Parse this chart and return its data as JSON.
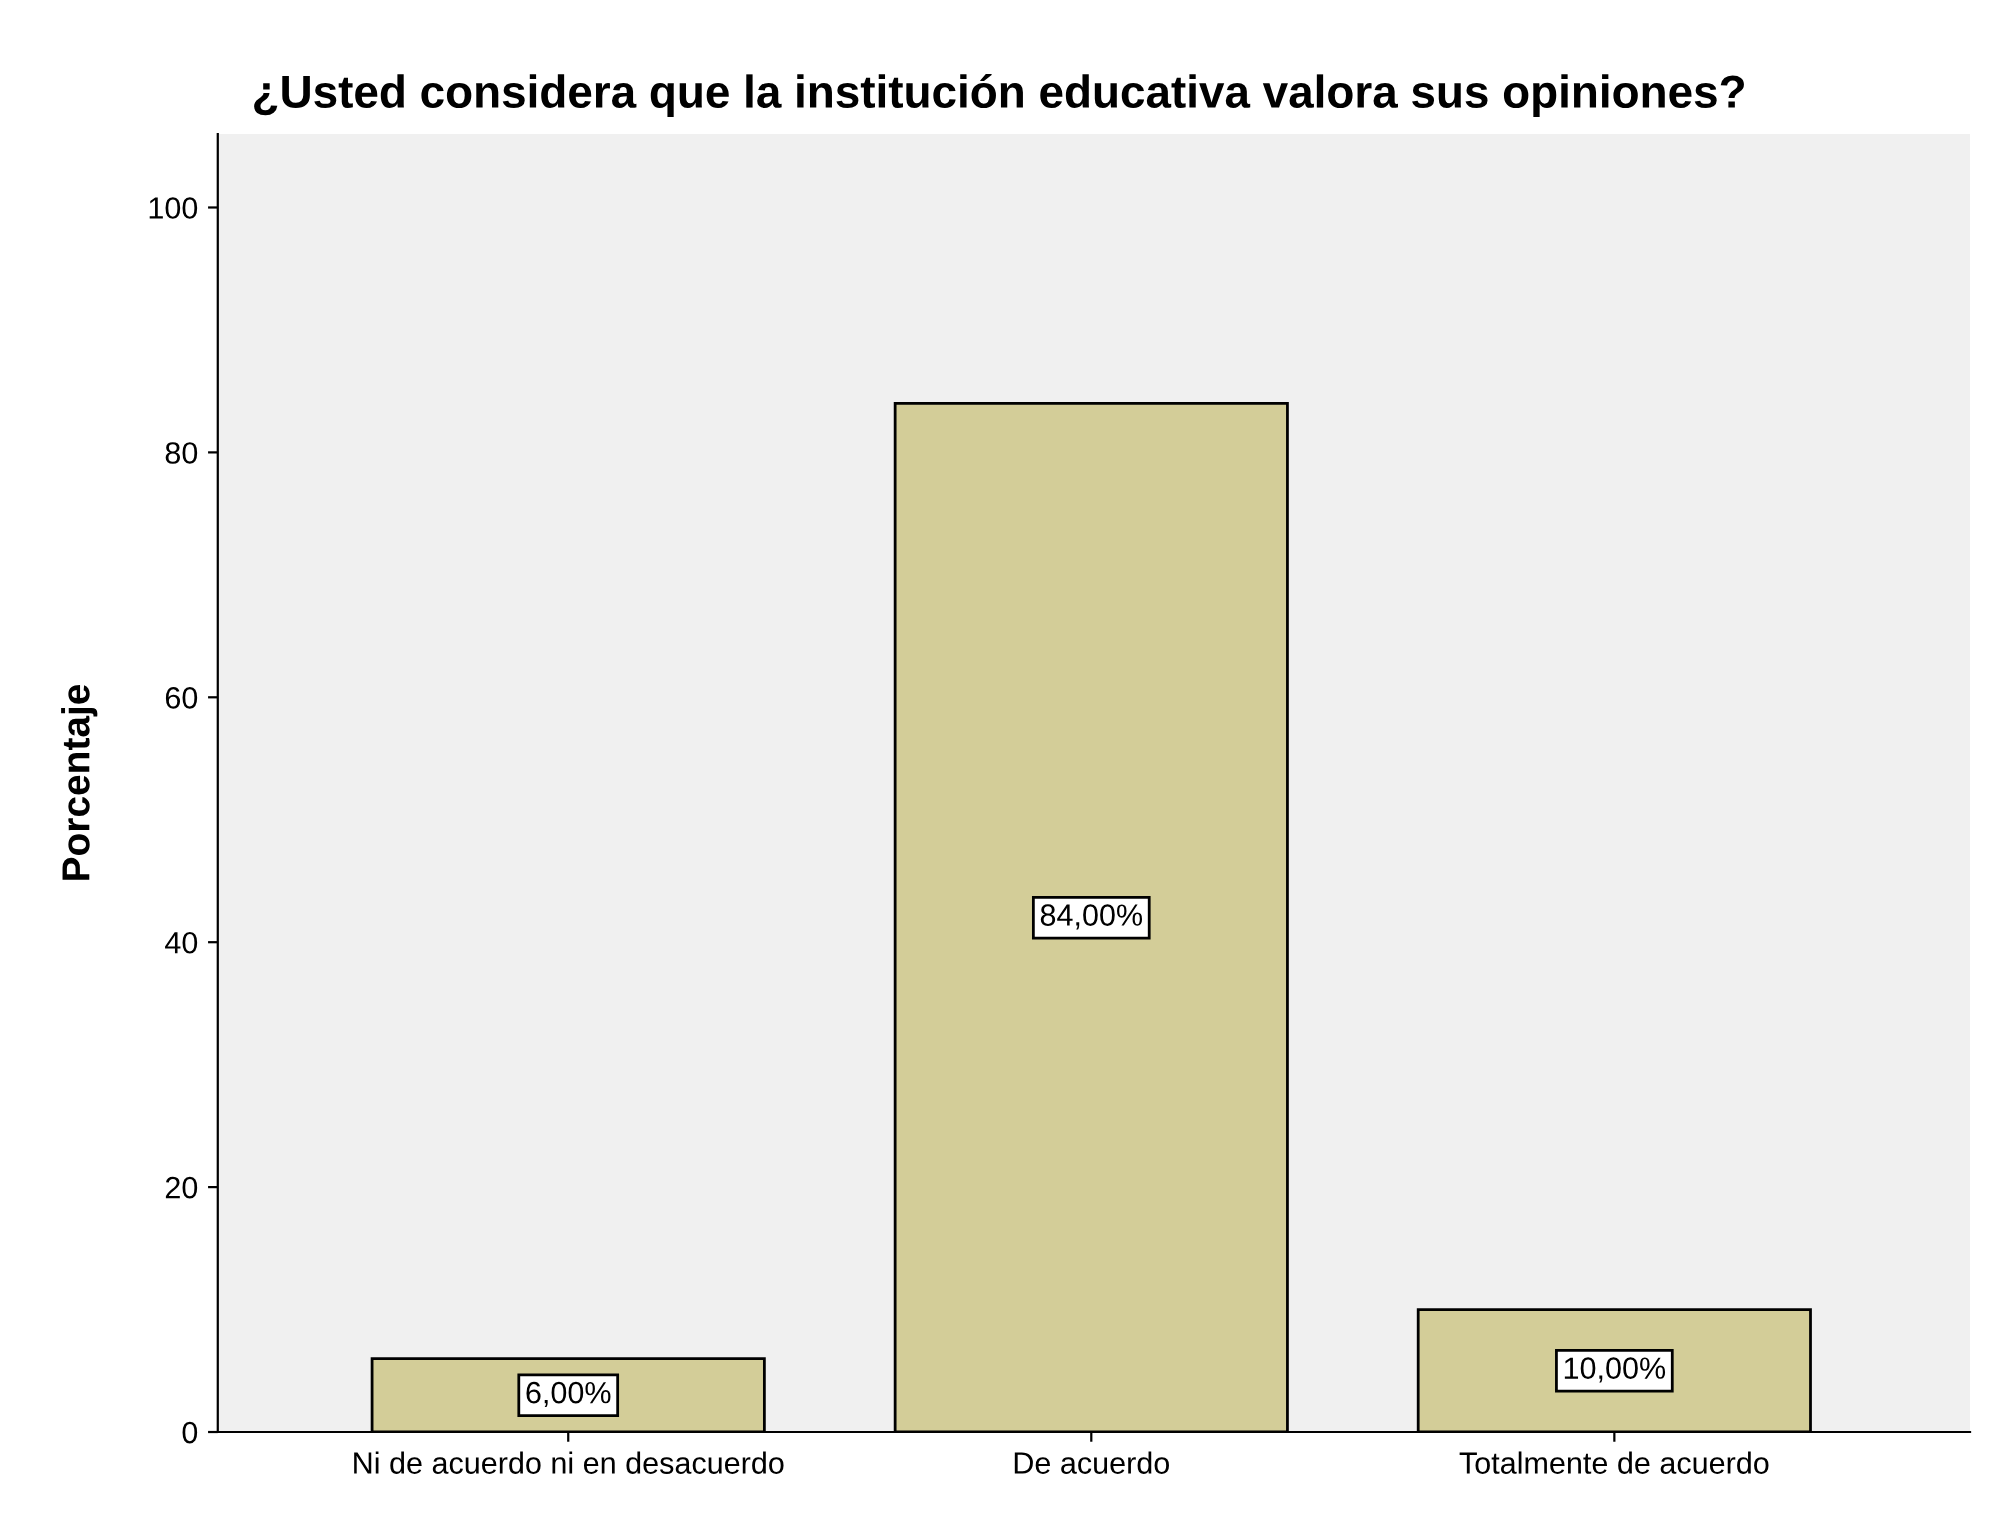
{
  "chart_data": {
    "type": "bar",
    "title": "¿Usted considera que la institución educativa valora sus opiniones?",
    "ylabel": "Porcentaje",
    "categories": [
      "Ni de acuerdo ni en desacuerdo",
      "De acuerdo",
      "Totalmente de acuerdo"
    ],
    "values": [
      6,
      84,
      10
    ],
    "value_labels": [
      "6,00%",
      "84,00%",
      "10,00%"
    ],
    "color": "#d3cd98",
    "ylim": [
      0,
      106
    ],
    "yticks": [
      0,
      20,
      40,
      60,
      80,
      100
    ],
    "grid": false,
    "legend": false
  }
}
